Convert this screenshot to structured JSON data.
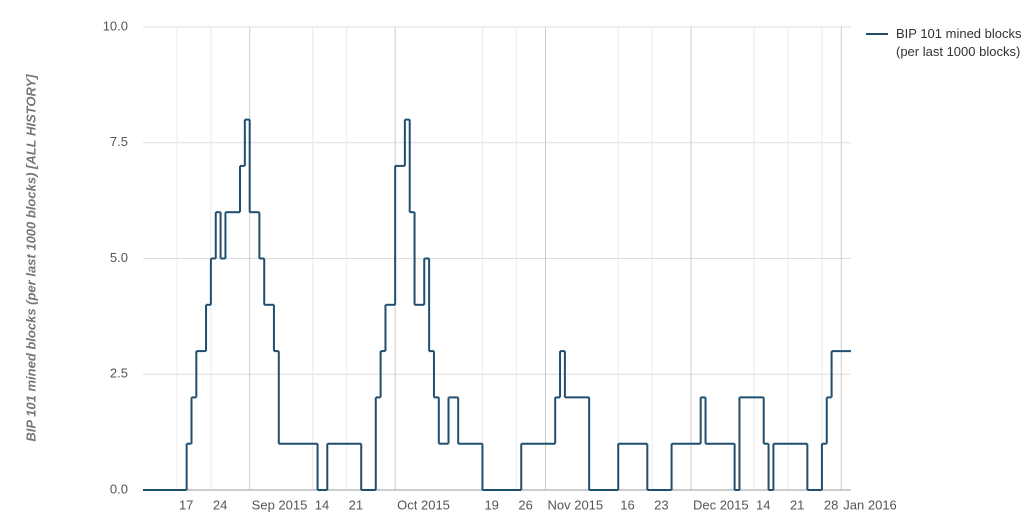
{
  "chart_data": {
    "type": "step-line",
    "y_label": "BIP 101 mined blocks (per last 1000 blocks) [ALL HISTORY]",
    "x": [
      "2015-08-10",
      "2015-08-19",
      "2015-08-20",
      "2015-08-21",
      "2015-08-23",
      "2015-08-24",
      "2015-08-25",
      "2015-08-26",
      "2015-08-27",
      "2015-08-30",
      "2015-08-31",
      "2015-09-01",
      "2015-09-03",
      "2015-09-04",
      "2015-09-06",
      "2015-09-07",
      "2015-09-15",
      "2015-09-17",
      "2015-09-24",
      "2015-09-27",
      "2015-09-28",
      "2015-09-29",
      "2015-10-01",
      "2015-10-03",
      "2015-10-04",
      "2015-10-05",
      "2015-10-07",
      "2015-10-08",
      "2015-10-09",
      "2015-10-10",
      "2015-10-12",
      "2015-10-14",
      "2015-10-19",
      "2015-10-27",
      "2015-11-03",
      "2015-11-04",
      "2015-11-05",
      "2015-11-10",
      "2015-11-16",
      "2015-11-22",
      "2015-11-27",
      "2015-12-03",
      "2015-12-04",
      "2015-12-10",
      "2015-12-11",
      "2015-12-16",
      "2015-12-17",
      "2015-12-18",
      "2015-12-25",
      "2015-12-28",
      "2015-12-29",
      "2015-12-30",
      "2016-01-03"
    ],
    "series": [
      {
        "name": "BIP 101 mined blocks (per last 1000 blocks)",
        "color": "#1f4e6e",
        "values": [
          0,
          1,
          2,
          3,
          4,
          5,
          6,
          5,
          6,
          7,
          8,
          6,
          5,
          4,
          3,
          1,
          0,
          1,
          0,
          2,
          3,
          4,
          7,
          8,
          6,
          4,
          5,
          3,
          2,
          1,
          2,
          1,
          0,
          1,
          2,
          3,
          2,
          0,
          1,
          0,
          1,
          2,
          1,
          0,
          2,
          1,
          0,
          1,
          0,
          1,
          2,
          3,
          3
        ]
      }
    ],
    "xlim": [
      "2015-08-10",
      "2016-01-03"
    ],
    "xticks": [
      {
        "value": "2015-08-17",
        "label": "17"
      },
      {
        "value": "2015-08-24",
        "label": "24"
      },
      {
        "value": "2015-09-01",
        "label": "Sep 2015"
      },
      {
        "value": "2015-09-14",
        "label": "14"
      },
      {
        "value": "2015-09-21",
        "label": "21"
      },
      {
        "value": "2015-10-01",
        "label": "Oct 2015"
      },
      {
        "value": "2015-10-19",
        "label": "19"
      },
      {
        "value": "2015-10-26",
        "label": "26"
      },
      {
        "value": "2015-11-01",
        "label": "Nov 2015"
      },
      {
        "value": "2015-11-16",
        "label": "16"
      },
      {
        "value": "2015-11-23",
        "label": "23"
      },
      {
        "value": "2015-12-01",
        "label": "Dec 2015"
      },
      {
        "value": "2015-12-14",
        "label": "14"
      },
      {
        "value": "2015-12-21",
        "label": "21"
      },
      {
        "value": "2015-12-28",
        "label": "28"
      },
      {
        "value": "2016-01-01",
        "label": "Jan 2016"
      }
    ],
    "ylim": [
      0,
      10
    ],
    "yticks": [
      {
        "value": 0,
        "label": "0.0"
      },
      2.5,
      {
        "value": 5,
        "label": "5.0"
      },
      7.5,
      {
        "value": 10,
        "label": "10.0"
      }
    ],
    "grid": true,
    "legend": "right"
  }
}
